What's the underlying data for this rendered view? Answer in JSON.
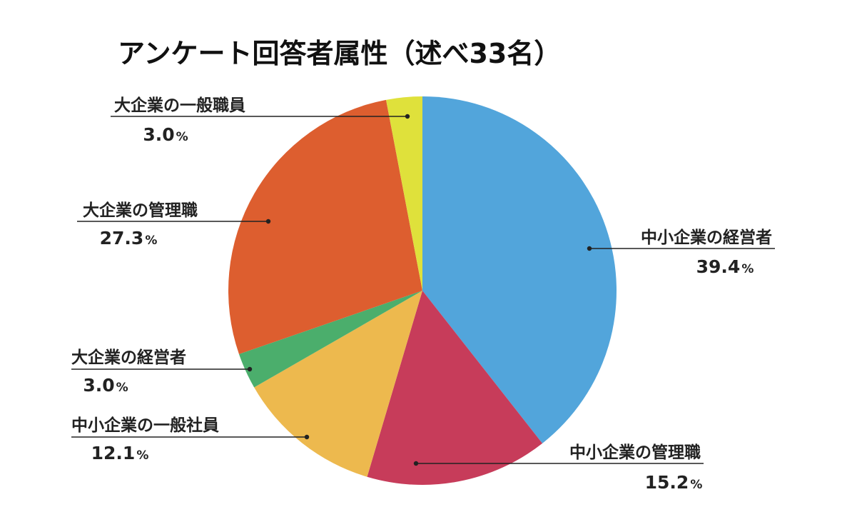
{
  "chart_data": {
    "type": "pie",
    "title": "アンケート回答者属性（述べ33名）",
    "unit": "%",
    "slices": [
      {
        "label": "中小企業の経営者",
        "value": 39.4,
        "display": "39.4",
        "color": "#52a5db"
      },
      {
        "label": "中小企業の管理職",
        "value": 15.2,
        "display": "15.2",
        "color": "#c73c5a"
      },
      {
        "label": "中小企業の一般社員",
        "value": 12.1,
        "display": "12.1",
        "color": "#edb94e"
      },
      {
        "label": "大企業の経営者",
        "value": 3.0,
        "display": "3.0",
        "color": "#4bae6c"
      },
      {
        "label": "大企業の管理職",
        "value": 27.3,
        "display": "27.3",
        "color": "#dd5e2f"
      },
      {
        "label": "大企業の一般職員",
        "value": 3.0,
        "display": "3.0",
        "color": "#dfe13b"
      }
    ]
  }
}
